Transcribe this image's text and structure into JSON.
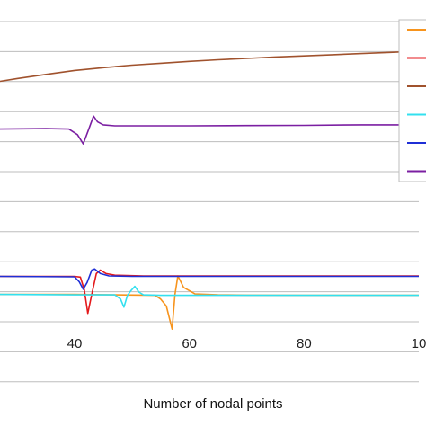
{
  "chart_data": {
    "type": "line",
    "title": "",
    "xlabel": "Number of nodal points",
    "ylabel": "",
    "grid": "horizontal",
    "legend_position": "right (cropped)",
    "x_ticks": [
      40,
      60,
      80,
      "10"
    ],
    "xlim": [
      27,
      100
    ],
    "ylim": [
      0,
      13
    ],
    "series": [
      {
        "color": "#f7941d",
        "x": [
          27,
          40,
          54,
          55,
          56,
          57,
          57.5,
          58,
          59,
          61,
          65,
          70,
          80,
          90,
          100
        ],
        "y": [
          2.5,
          2.5,
          2.46,
          2.3,
          2.0,
          1.0,
          2.5,
          3.3,
          2.8,
          2.52,
          2.48,
          2.47,
          2.46,
          2.46,
          2.46
        ]
      },
      {
        "color": "#e41a1c",
        "x": [
          27,
          40,
          41,
          41.7,
          42.3,
          43,
          43.8,
          44.5,
          45.5,
          47,
          52,
          60,
          70,
          80,
          90,
          100
        ],
        "y": [
          3.28,
          3.28,
          3.25,
          2.7,
          1.68,
          2.5,
          3.4,
          3.55,
          3.4,
          3.33,
          3.3,
          3.3,
          3.3,
          3.3,
          3.3,
          3.3
        ]
      },
      {
        "color": "#a0522d",
        "x": [
          27,
          30,
          35,
          40,
          45,
          50,
          55,
          60,
          65,
          70,
          75,
          80,
          85,
          90,
          95,
          100
        ],
        "y": [
          11.7,
          11.82,
          12.0,
          12.17,
          12.29,
          12.4,
          12.48,
          12.56,
          12.63,
          12.69,
          12.75,
          12.8,
          12.85,
          12.9,
          12.95,
          13.0
        ]
      },
      {
        "color": "#33e0ef",
        "x": [
          27,
          40,
          47,
          48,
          48.6,
          49.2,
          49.8,
          50.5,
          51.2,
          52,
          55,
          60,
          70,
          80,
          90,
          100
        ],
        "y": [
          2.5,
          2.48,
          2.48,
          2.3,
          1.95,
          2.45,
          2.65,
          2.85,
          2.6,
          2.48,
          2.46,
          2.46,
          2.46,
          2.46,
          2.46,
          2.46
        ]
      },
      {
        "color": "#1f2fd6",
        "x": [
          27,
          40,
          40.8,
          41.5,
          42.2,
          43,
          43.5,
          44.5,
          46,
          50,
          60,
          70,
          80,
          90,
          100
        ],
        "y": [
          3.28,
          3.26,
          3.05,
          2.72,
          3.02,
          3.55,
          3.6,
          3.4,
          3.3,
          3.28,
          3.28,
          3.28,
          3.28,
          3.28,
          3.28
        ]
      },
      {
        "color": "#7b1fa2",
        "x": [
          27,
          35,
          39,
          40.5,
          41.5,
          42.5,
          43.3,
          44,
          45,
          47,
          52,
          60,
          70,
          80,
          90,
          100
        ],
        "y": [
          9.64,
          9.66,
          9.64,
          9.4,
          9.0,
          9.65,
          10.2,
          9.95,
          9.82,
          9.78,
          9.78,
          9.78,
          9.79,
          9.8,
          9.82,
          9.82
        ]
      }
    ]
  }
}
